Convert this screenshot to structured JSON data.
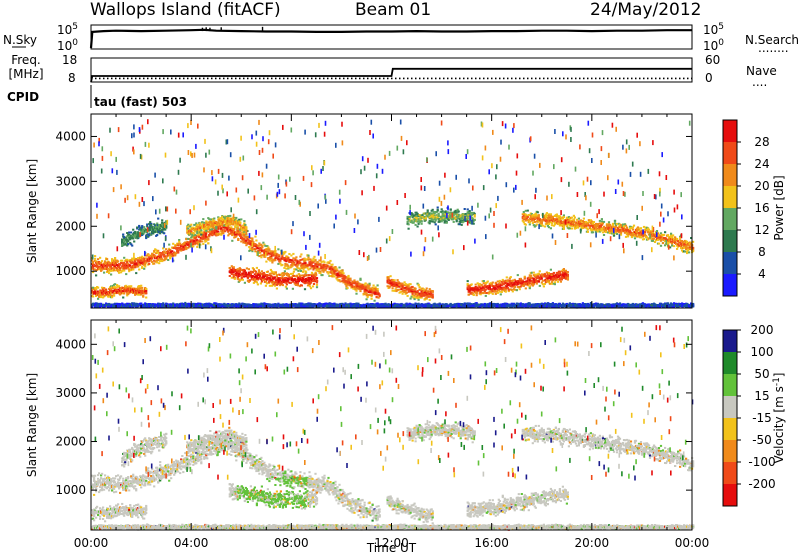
{
  "header": {
    "station": "Wallops Island (fitACF)",
    "beam": "Beam 01",
    "date": "24/May/2012"
  },
  "panel_labels": {
    "nsky": "N.Sky",
    "nsearch": "N.Search",
    "nsearch_dots": "........",
    "freq_line1": "Freq.",
    "freq_line2": "[MHz]",
    "nave": "Nave",
    "nave_dots": "....",
    "cpid": "CPID",
    "cpid_value": "tau (fast) 503"
  },
  "colors": {
    "scale_power": [
      "#1a1aff",
      "#1a4fa8",
      "#2e7a4f",
      "#62a861",
      "#f2c21a",
      "#f08a1a",
      "#f04a18",
      "#e60d0d"
    ],
    "scale_velocity": [
      "#e60d0d",
      "#f04a18",
      "#f08a1a",
      "#f2c21a",
      "#c8c8c0",
      "#62c23a",
      "#1f8a2a",
      "#1a1a8c"
    ],
    "bar_edge": "#000000"
  },
  "chart_data": [
    {
      "type": "line",
      "name": "noise",
      "y_ticks_left": [
        "10^5",
        "10^0"
      ],
      "y_ticks_right": [
        "10^5",
        "10^0"
      ],
      "x": [
        0,
        0.05,
        0.5,
        1,
        2,
        3,
        4,
        4.5,
        5,
        6,
        7,
        8,
        9,
        10,
        11,
        12,
        13,
        14,
        15,
        16,
        17,
        18,
        19,
        20,
        21,
        22,
        23,
        24
      ],
      "n_sky": [
        0,
        3.8,
        4.0,
        4.1,
        4.0,
        4.1,
        4.2,
        4.3,
        4.1,
        4.0,
        3.9,
        3.9,
        3.8,
        3.8,
        3.9,
        3.9,
        4.0,
        3.9,
        3.9,
        4.0,
        4.0,
        4.1,
        4.1,
        4.0,
        4.1,
        4.1,
        4.2,
        4.2
      ],
      "spikes": [
        {
          "x": 4.45,
          "y": 4.8
        },
        {
          "x": 4.6,
          "y": 4.9
        },
        {
          "x": 4.75,
          "y": 4.8
        },
        {
          "x": 5.2,
          "y": 4.9
        },
        {
          "x": 6.85,
          "y": 5.0
        }
      ]
    },
    {
      "type": "line",
      "name": "frequency",
      "y_ticks_left": [
        "18",
        "8"
      ],
      "y_ticks_right": [
        "60",
        "0"
      ],
      "ylim_left": [
        8,
        18
      ],
      "ylim_right": [
        0,
        60
      ],
      "x": [
        0,
        0.05,
        12,
        12.05,
        24
      ],
      "freq": [
        8,
        10.5,
        10.5,
        13.5,
        13.5
      ],
      "nave": 9.0
    },
    {
      "type": "heatmap",
      "name": "power",
      "xlabel": "",
      "ylabel": "Slant Range [km]",
      "xlim": [
        0,
        24
      ],
      "ylim": [
        180,
        4500
      ],
      "y_ticks": [
        1000,
        2000,
        3000,
        4000
      ],
      "colorbar_label": "Power [dB]",
      "colorbar_ticks": [
        "4",
        "8",
        "12",
        "16",
        "20",
        "24",
        "28"
      ],
      "bands": [
        {
          "x": [
            0,
            1.5,
            3,
            4.5,
            5.3,
            6.2,
            7,
            7.8,
            8.5,
            9.5,
            10.2,
            11,
            11.5
          ],
          "r": [
            1150,
            1150,
            1400,
            1800,
            2000,
            1700,
            1400,
            1250,
            1200,
            1080,
            800,
            600,
            500
          ],
          "w": 250,
          "i": 6.5
        },
        {
          "x": [
            0,
            0.6,
            1.2,
            2.2
          ],
          "r": [
            550,
            550,
            600,
            560
          ],
          "w": 180,
          "i": 6.6
        },
        {
          "x": [
            5.5,
            6.5,
            7.5,
            8.3,
            9
          ],
          "r": [
            1000,
            920,
            820,
            820,
            860
          ],
          "w": 240,
          "i": 7.2
        },
        {
          "x": [
            3.8,
            4.8,
            5.5,
            6.2
          ],
          "r": [
            1900,
            2080,
            2150,
            1950
          ],
          "w": 200,
          "i": 5.2
        },
        {
          "x": [
            11.8,
            12.4,
            13,
            13.6
          ],
          "r": [
            800,
            650,
            560,
            500
          ],
          "w": 220,
          "i": 6.6
        },
        {
          "x": [
            15,
            16,
            17,
            18,
            19
          ],
          "r": [
            600,
            650,
            760,
            860,
            950
          ],
          "w": 220,
          "i": 7.1
        },
        {
          "x": [
            12.6,
            13.5,
            14.5,
            15.3
          ],
          "r": [
            2150,
            2250,
            2250,
            2200
          ],
          "w": 220,
          "i": 3.6
        },
        {
          "x": [
            17.2,
            18.5,
            19.8,
            21,
            22.2,
            23.1,
            24
          ],
          "r": [
            2200,
            2150,
            2050,
            1950,
            1850,
            1700,
            1550
          ],
          "w": 220,
          "i": 5.8
        },
        {
          "x": [
            1.2,
            2,
            3
          ],
          "r": [
            1650,
            1900,
            2050
          ],
          "w": 220,
          "i": 2.6
        },
        {
          "x": [
            0,
            1,
            2,
            3,
            4,
            5,
            6,
            7,
            8,
            9,
            10,
            11,
            12,
            13,
            14,
            15,
            16,
            17,
            18,
            19,
            20,
            21,
            22,
            23,
            24
          ],
          "r": [
            260,
            260,
            260,
            260,
            260,
            260,
            260,
            260,
            260,
            260,
            260,
            260,
            260,
            260,
            260,
            260,
            260,
            260,
            260,
            260,
            260,
            260,
            260,
            260,
            260
          ],
          "w": 60,
          "i": 0.9
        }
      ]
    },
    {
      "type": "heatmap",
      "name": "velocity",
      "xlabel": "Time UT",
      "ylabel": "Slant Range [km]",
      "xlim": [
        0,
        24
      ],
      "ylim": [
        180,
        4500
      ],
      "x_ticks": [
        "00:00",
        "04:00",
        "08:00",
        "12:00",
        "16:00",
        "20:00",
        "00:00"
      ],
      "y_ticks": [
        1000,
        2000,
        3000,
        4000
      ],
      "colorbar_label": "Velocity [m s^-1]",
      "colorbar_ticks": [
        "-200",
        "-100",
        "-50",
        "-15",
        "15",
        "50",
        "100",
        "200"
      ],
      "green_region": {
        "x": [
          5.8,
          8.6
        ],
        "r": [
          650,
          1300
        ]
      }
    }
  ]
}
